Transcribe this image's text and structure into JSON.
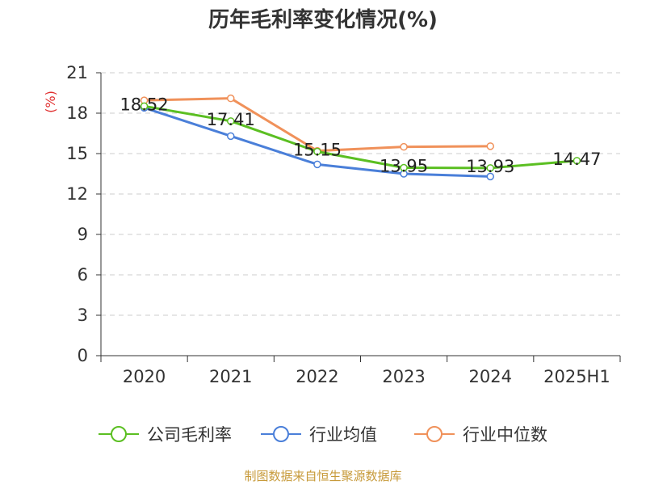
{
  "chart_data": {
    "type": "line",
    "title": "历年毛利率变化情况(%)",
    "ylabel": "(%)",
    "xlabel": "",
    "categories": [
      "2020",
      "2021",
      "2022",
      "2023",
      "2024",
      "2025H1"
    ],
    "ylim": [
      0,
      21
    ],
    "yticks": [
      0,
      3,
      6,
      9,
      12,
      15,
      18,
      21
    ],
    "grid": true,
    "legend_position": "bottom",
    "series": [
      {
        "name": "公司毛利率",
        "color": "#5bbf22",
        "values": [
          18.52,
          17.41,
          15.15,
          13.95,
          13.93,
          14.47
        ],
        "labels": [
          "18.52",
          "17.41",
          "15.15",
          "13.95",
          "13.93",
          "14.47"
        ]
      },
      {
        "name": "行业均值",
        "color": "#4a7fd9",
        "values": [
          18.4,
          16.3,
          14.2,
          13.5,
          13.3,
          null
        ]
      },
      {
        "name": "行业中位数",
        "color": "#f0915a",
        "values": [
          18.95,
          19.1,
          15.2,
          15.5,
          15.55,
          null
        ]
      }
    ]
  },
  "source_text": "制图数据来自恒生聚源数据库"
}
